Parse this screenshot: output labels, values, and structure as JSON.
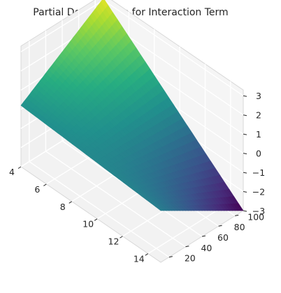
{
  "chart_data": {
    "type": "surface3d",
    "title": "Partial Dependence for Interaction Term",
    "xlabel": "",
    "ylabel": "",
    "zlabel": "",
    "x_ticks": [
      4,
      6,
      8,
      10,
      12,
      14
    ],
    "y_ticks": [
      20,
      40,
      60,
      80,
      100
    ],
    "z_ticks": [
      -3,
      -2,
      -1,
      0,
      1,
      2,
      3
    ],
    "xlim": [
      4,
      15
    ],
    "ylim": [
      10,
      110
    ],
    "zlim": [
      -3,
      3.3
    ],
    "grid": true,
    "colormap": "viridis",
    "surface": {
      "description_of_corners": "value at each grid corner (x, y, z)",
      "corners": [
        {
          "x": 4,
          "y": 10,
          "z": 0.2
        },
        {
          "x": 15,
          "y": 10,
          "z": -0.3
        },
        {
          "x": 4,
          "y": 110,
          "z": 3.1
        },
        {
          "x": 15,
          "y": 110,
          "z": -3.0
        }
      ]
    }
  }
}
